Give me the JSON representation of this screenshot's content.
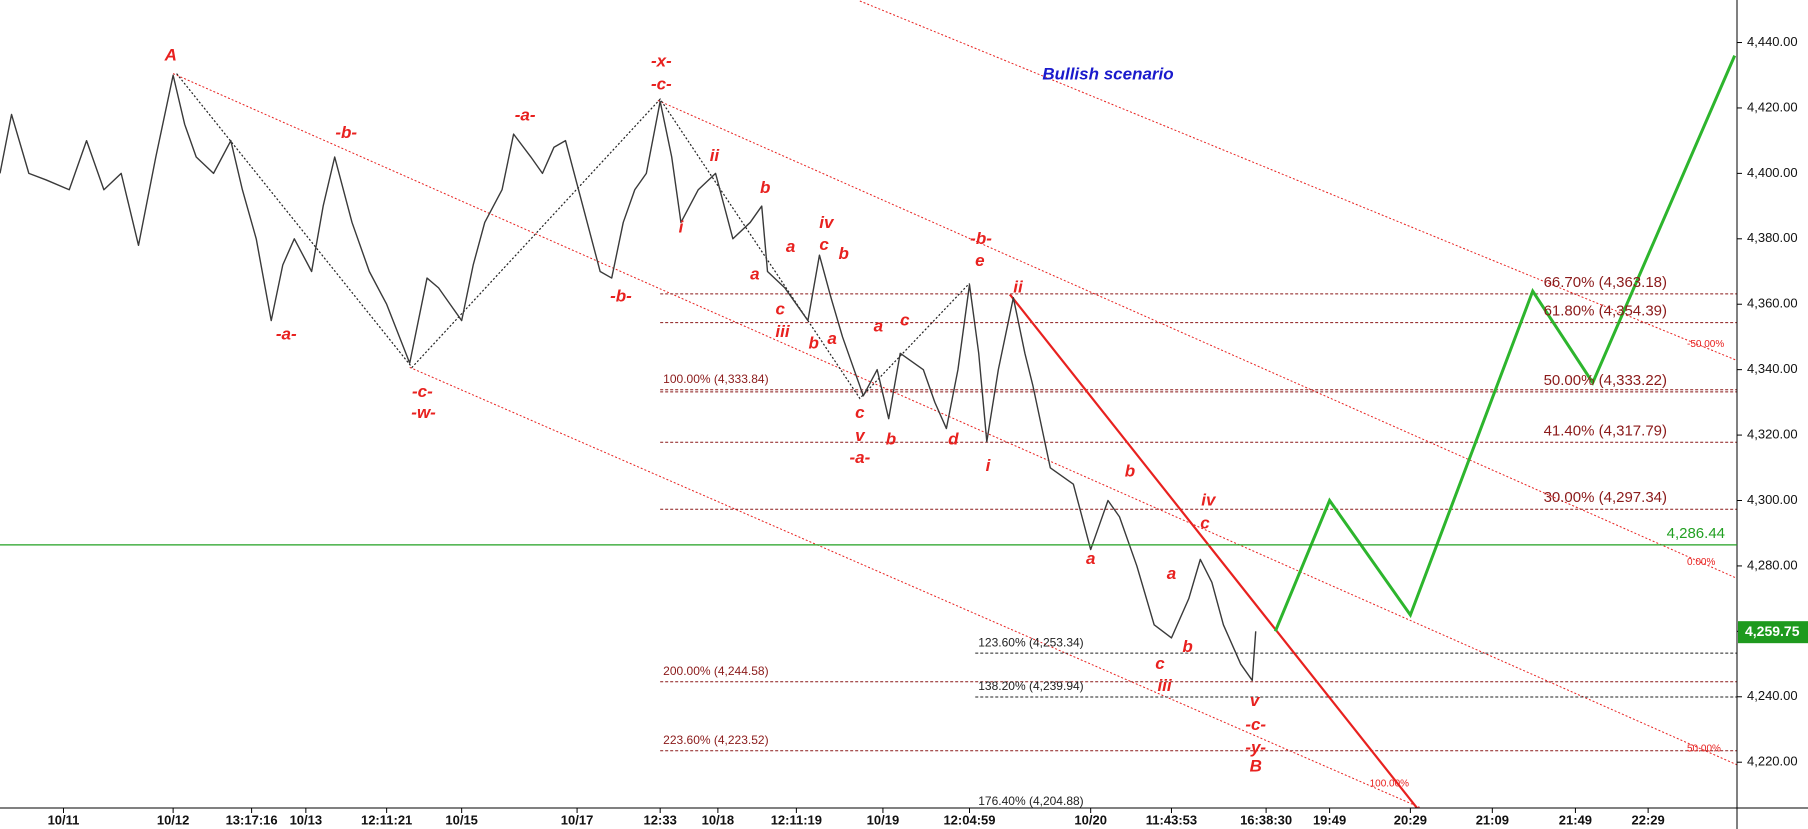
{
  "chart_data": {
    "type": "line",
    "xlim": [
      0,
      301
    ],
    "ylim": [
      4206,
      4453
    ],
    "xticks": [
      {
        "value": 11,
        "label": "10/11"
      },
      {
        "value": 30,
        "label": "10/12"
      },
      {
        "value": 43.6,
        "label": "13:17:16"
      },
      {
        "value": 53,
        "label": "10/13"
      },
      {
        "value": 67,
        "label": "12:11:21"
      },
      {
        "value": 80,
        "label": "10/15"
      },
      {
        "value": 100,
        "label": "10/17"
      },
      {
        "value": 114.4,
        "label": "12:33"
      },
      {
        "value": 124.4,
        "label": "10/18"
      },
      {
        "value": 138,
        "label": "12:11:19"
      },
      {
        "value": 153,
        "label": "10/19"
      },
      {
        "value": 168,
        "label": "12:04:59"
      },
      {
        "value": 189,
        "label": "10/20"
      },
      {
        "value": 203,
        "label": "11:43:53"
      },
      {
        "value": 219.4,
        "label": "16:38:30"
      },
      {
        "value": 230.4,
        "label": "19:49"
      },
      {
        "value": 244.4,
        "label": "20:29"
      },
      {
        "value": 258.6,
        "label": "21:09"
      },
      {
        "value": 273,
        "label": "21:49"
      },
      {
        "value": 285.6,
        "label": "22:29"
      }
    ],
    "yticks": [
      {
        "value": 4220,
        "label": "4,220.00"
      },
      {
        "value": 4240,
        "label": "4,240.00"
      },
      {
        "value": 4260,
        "label": "4,260.00"
      },
      {
        "value": 4280,
        "label": "4,280.00"
      },
      {
        "value": 4300,
        "label": "4,300.00"
      },
      {
        "value": 4320,
        "label": "4,320.00"
      },
      {
        "value": 4340,
        "label": "4,340.00"
      },
      {
        "value": 4360,
        "label": "4,360.00"
      },
      {
        "value": 4380,
        "label": "4,380.00"
      },
      {
        "value": 4400,
        "label": "4,400.00"
      },
      {
        "value": 4420,
        "label": "4,420.00"
      },
      {
        "value": 4440,
        "label": "4,440.00"
      }
    ],
    "x": [
      0,
      2,
      5,
      8,
      12,
      15,
      18,
      21,
      24,
      27,
      30,
      32,
      34,
      37,
      40,
      42,
      44.4,
      47,
      49,
      51,
      54,
      56,
      58,
      61,
      64,
      67,
      71,
      74,
      76,
      78,
      80,
      82,
      84,
      87,
      89,
      92,
      94,
      96,
      98,
      101,
      104,
      106,
      108,
      110,
      112,
      114.4,
      116.4,
      118,
      121,
      124,
      127,
      130,
      132,
      133,
      136,
      140,
      142,
      144,
      146,
      149.6,
      152,
      154,
      156,
      160,
      162,
      164,
      166,
      168,
      169.6,
      171,
      173,
      175.6,
      177.6,
      179,
      182,
      186,
      189,
      192,
      194,
      197,
      200,
      203,
      206,
      208,
      210,
      212,
      215,
      217,
      217.6
    ],
    "series": [
      {
        "color": "#3a3a3a",
        "values": [
          4400,
          4418,
          4400,
          4398,
          4395,
          4410,
          4395,
          4400,
          4378,
          4405,
          4430,
          4415,
          4405,
          4400,
          4410,
          4395,
          4380,
          4355,
          4372,
          4380,
          4370,
          4390,
          4405,
          4385,
          4370,
          4360,
          4342,
          4368,
          4365,
          4360,
          4355,
          4372,
          4385,
          4395,
          4412,
          4405,
          4400,
          4408,
          4410,
          4390,
          4370,
          4368,
          4385,
          4395,
          4400,
          4422,
          4405,
          4385,
          4395,
          4400,
          4380,
          4385,
          4390,
          4370,
          4365,
          4355,
          4375,
          4362,
          4350,
          4332,
          4340,
          4325,
          4345,
          4340,
          4330,
          4322,
          4340,
          4366,
          4345,
          4318,
          4340,
          4362,
          4345,
          4335,
          4310,
          4305,
          4285,
          4300,
          4295,
          4280,
          4262,
          4258,
          4270,
          4282,
          4275,
          4262,
          4250,
          4245,
          4260
        ]
      }
    ],
    "last_price": {
      "value": 4259.75,
      "label": "4,259.75",
      "color": "#1e9a1e"
    },
    "hline": {
      "value": 4286.44,
      "label": "4,286.44",
      "color": "#22a022"
    },
    "projection": {
      "color": "#2db52d",
      "x": [
        221,
        230.4,
        244.4,
        265.6,
        276,
        300.6
      ],
      "values": [
        4260,
        4300,
        4265,
        4364,
        4336,
        4436
      ]
    },
    "red_line": {
      "color": "#e8211f",
      "x1": 175,
      "y1": 4363,
      "x2": 246,
      "y2": 4205
    },
    "zigzag": {
      "color": "#222222",
      "x": [
        30.6,
        71.4,
        114.4,
        149,
        168
      ],
      "values": [
        4430.5,
        4340.7,
        4422.7,
        4331.2,
        4366.4
      ]
    },
    "channels": [
      {
        "x1": 149,
        "y1": 4452.7,
        "x2": 301,
        "y2": 4342.8,
        "label": "-50.00%"
      },
      {
        "x1": 114,
        "y1": 4422.3,
        "x2": 301,
        "y2": 4276.2,
        "label": "0.00%"
      },
      {
        "x1": 30,
        "y1": 4430.5,
        "x2": 301,
        "y2": 4219.2,
        "label": "50.00%"
      },
      {
        "x1": 71,
        "y1": 4340.7,
        "x2": 246,
        "y2": 4206.2,
        "label": "100.00%"
      }
    ],
    "fib_right": {
      "x_start": 114.4,
      "color": "#8b1a1a",
      "levels": [
        {
          "value": 4363.18,
          "label": "66.70% (4,363.18)"
        },
        {
          "value": 4354.39,
          "label": "61.80% (4,354.39)"
        },
        {
          "value": 4333.22,
          "label": "50.00% (4,333.22)"
        },
        {
          "value": 4317.79,
          "label": "41.40% (4,317.79)"
        },
        {
          "value": 4297.34,
          "label": "30.00% (4,297.34)"
        }
      ]
    },
    "fib_left": {
      "x_start": 114.4,
      "color": "#8b1a1a",
      "levels": [
        {
          "value": 4333.84,
          "label": "100.00% (4,333.84)"
        },
        {
          "value": 4244.58,
          "label": "200.00% (4,244.58)"
        },
        {
          "value": 4223.52,
          "label": "223.60% (4,223.52)"
        }
      ]
    },
    "fib_mid": {
      "x_start": 169,
      "color": "#222222",
      "levels": [
        {
          "value": 4253.34,
          "label": "123.60% (4,253.34)"
        },
        {
          "value": 4239.94,
          "label": "138.20% (4,239.94)"
        },
        {
          "value": 4204.88,
          "label": "176.40% (4,204.88)"
        }
      ]
    },
    "annotation_color": "#e8211f",
    "annotations": [
      {
        "text": "A",
        "x": 29.6,
        "y": 4435.8
      },
      {
        "text": "-a-",
        "x": 49.6,
        "y": 4350.6
      },
      {
        "text": "-b-",
        "x": 60,
        "y": 4412.2
      },
      {
        "text": "-c-",
        "x": 73.2,
        "y": 4333
      },
      {
        "text": "-w-",
        "x": 73.4,
        "y": 4326.6
      },
      {
        "text": "-a-",
        "x": 91,
        "y": 4417.5
      },
      {
        "text": "-b-",
        "x": 107.6,
        "y": 4362.2
      },
      {
        "text": "-x-",
        "x": 114.6,
        "y": 4434
      },
      {
        "text": "-c-",
        "x": 114.6,
        "y": 4427
      },
      {
        "text": "i",
        "x": 118,
        "y": 4383.3
      },
      {
        "text": "ii",
        "x": 123.8,
        "y": 4405.1
      },
      {
        "text": "b",
        "x": 132.6,
        "y": 4395.3
      },
      {
        "text": "iv",
        "x": 143.2,
        "y": 4384.7
      },
      {
        "text": "c",
        "x": 142.8,
        "y": 4378
      },
      {
        "text": "b",
        "x": 146.2,
        "y": 4375.2
      },
      {
        "text": "a",
        "x": 137,
        "y": 4377.3
      },
      {
        "text": "a",
        "x": 130.8,
        "y": 4368.9
      },
      {
        "text": "c",
        "x": 135.2,
        "y": 4358.3
      },
      {
        "text": "iii",
        "x": 135.6,
        "y": 4351.3
      },
      {
        "text": "b",
        "x": 141,
        "y": 4347.8
      },
      {
        "text": "a",
        "x": 144.2,
        "y": 4349.2
      },
      {
        "text": "a",
        "x": 152.2,
        "y": 4353
      },
      {
        "text": "c",
        "x": 156.8,
        "y": 4354.8
      },
      {
        "text": "c",
        "x": 149,
        "y": 4326.6
      },
      {
        "text": "v",
        "x": 149,
        "y": 4319.6
      },
      {
        "text": "-a-",
        "x": 149,
        "y": 4312.9
      },
      {
        "text": "b",
        "x": 154.4,
        "y": 4318.5
      },
      {
        "text": "d",
        "x": 165.2,
        "y": 4318.5
      },
      {
        "text": "-b-",
        "x": 170,
        "y": 4379.8
      },
      {
        "text": "e",
        "x": 169.8,
        "y": 4373.1
      },
      {
        "text": "ii",
        "x": 176.4,
        "y": 4365
      },
      {
        "text": "i",
        "x": 171.2,
        "y": 4310.4
      },
      {
        "text": "b",
        "x": 195.8,
        "y": 4308.7
      },
      {
        "text": "iv",
        "x": 209.4,
        "y": 4299.9
      },
      {
        "text": "c",
        "x": 208.8,
        "y": 4292.8
      },
      {
        "text": "a",
        "x": 189,
        "y": 4281.9
      },
      {
        "text": "a",
        "x": 203,
        "y": 4277.3
      },
      {
        "text": "b",
        "x": 205.8,
        "y": 4255.1
      },
      {
        "text": "c",
        "x": 201,
        "y": 4249.9
      },
      {
        "text": "iii",
        "x": 201.8,
        "y": 4243.2
      },
      {
        "text": "v",
        "x": 217.4,
        "y": 4238.6
      },
      {
        "text": "-c-",
        "x": 217.6,
        "y": 4231.2
      },
      {
        "text": "-y-",
        "x": 217.6,
        "y": 4224.2
      },
      {
        "text": "B",
        "x": 217.6,
        "y": 4218.5
      }
    ],
    "scenario_label": {
      "text": "Bullish scenario",
      "x": 192,
      "y": 4430.1,
      "color": "#1a1acc"
    }
  }
}
